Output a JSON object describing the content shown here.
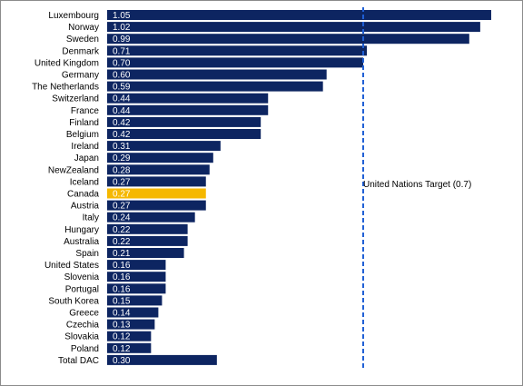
{
  "chart_data": {
    "type": "bar",
    "orientation": "horizontal",
    "categories": [
      "Luxembourg",
      "Norway",
      "Sweden",
      "Denmark",
      "United Kingdom",
      "Germany",
      "The Netherlands",
      "Switzerland",
      "France",
      "Finland",
      "Belgium",
      "Ireland",
      "Japan",
      "NewZealand",
      "Iceland",
      "Canada",
      "Austria",
      "Italy",
      "Hungary",
      "Australia",
      "Spain",
      "United States",
      "Slovenia",
      "Portugal",
      "South Korea",
      "Greece",
      "Czechia",
      "Slovakia",
      "Poland",
      "Total DAC"
    ],
    "values": [
      1.05,
      1.02,
      0.99,
      0.71,
      0.7,
      0.6,
      0.59,
      0.44,
      0.44,
      0.42,
      0.42,
      0.31,
      0.29,
      0.28,
      0.27,
      0.27,
      0.27,
      0.24,
      0.22,
      0.22,
      0.21,
      0.16,
      0.16,
      0.16,
      0.15,
      0.14,
      0.13,
      0.12,
      0.12,
      0.3
    ],
    "value_labels": [
      "1.05",
      "1.02",
      "0.99",
      "0.71",
      "0.70",
      "0.60",
      "0.59",
      "0.44",
      "0.44",
      "0.42",
      "0.42",
      "0.31",
      "0.29",
      "0.28",
      "0.27",
      "0.27",
      "0.27",
      "0.24",
      "0.22",
      "0.22",
      "0.21",
      "0.16",
      "0.16",
      "0.16",
      "0.15",
      "0.14",
      "0.13",
      "0.12",
      "0.12",
      "0.30"
    ],
    "highlight_category": "Canada",
    "xlim": [
      0,
      1.06
    ],
    "colors": {
      "bar": "#0d2561",
      "highlight": "#f5b800",
      "reference_line": "#1f5fd6"
    },
    "reference_line": {
      "value": 0.7,
      "label": "United Nations Target (0.7)",
      "style": "dashed"
    },
    "grid": false,
    "legend": "none",
    "title": "",
    "xlabel": "",
    "ylabel": ""
  }
}
